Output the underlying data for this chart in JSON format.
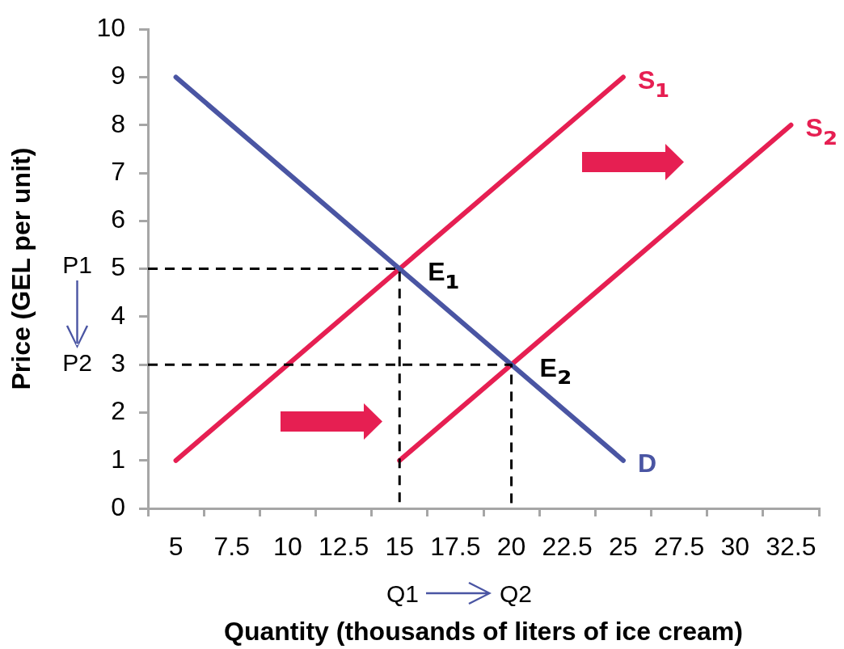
{
  "chart_data": {
    "type": "line",
    "xlabel": "Quantity (thousands of liters of ice cream)",
    "ylabel": "Price (GEL per unit)",
    "xlim": [
      3.75,
      33.75
    ],
    "xticks": [
      {
        "value": 3.75,
        "label": null
      },
      5,
      {
        "value": 6.25,
        "label": null
      },
      7.5,
      {
        "value": 8.75,
        "label": null
      },
      10,
      {
        "value": 11.25,
        "label": null
      },
      12.5,
      {
        "value": 13.75,
        "label": null
      },
      15,
      {
        "value": 16.25,
        "label": null
      },
      17.5,
      {
        "value": 18.75,
        "label": null
      },
      20,
      {
        "value": 21.25,
        "label": null
      },
      22.5,
      {
        "value": 23.75,
        "label": null
      },
      25,
      {
        "value": 26.25,
        "label": null
      },
      27.5,
      {
        "value": 28.75,
        "label": null
      },
      30,
      {
        "value": 31.25,
        "label": null
      },
      32.5,
      {
        "value": 33.75,
        "label": null
      }
    ],
    "ylim": [
      0,
      10
    ],
    "yticks": [
      0,
      1,
      2,
      3,
      4,
      5,
      6,
      7,
      8,
      9,
      10
    ],
    "series": [
      {
        "name": "D",
        "color": "#4a55a3",
        "x": [
          5,
          25
        ],
        "values": [
          9,
          1
        ]
      },
      {
        "name": "S₁",
        "color": "#e61f52",
        "x": [
          5,
          25
        ],
        "values": [
          1,
          9
        ]
      },
      {
        "name": "S₂",
        "color": "#e61f52",
        "x": [
          15,
          32.5
        ],
        "values": [
          1,
          8
        ]
      },
      {
        "color": "#000000",
        "line_style": "dashed",
        "x": [
          3.75,
          15,
          15
        ],
        "values": [
          5,
          5,
          0
        ]
      },
      {
        "color": "#000000",
        "line_style": "dashed",
        "x": [
          3.75,
          20,
          20
        ],
        "values": [
          3,
          3,
          0
        ]
      }
    ],
    "annotations": [
      {
        "text": "E₁",
        "x": 15,
        "y": 5
      },
      {
        "text": "E₂",
        "x": 20,
        "y": 3
      },
      "P1",
      "P2",
      "Q1",
      "Q2"
    ],
    "grid": false,
    "legend": false,
    "marker": "none",
    "line_style": "solid"
  }
}
